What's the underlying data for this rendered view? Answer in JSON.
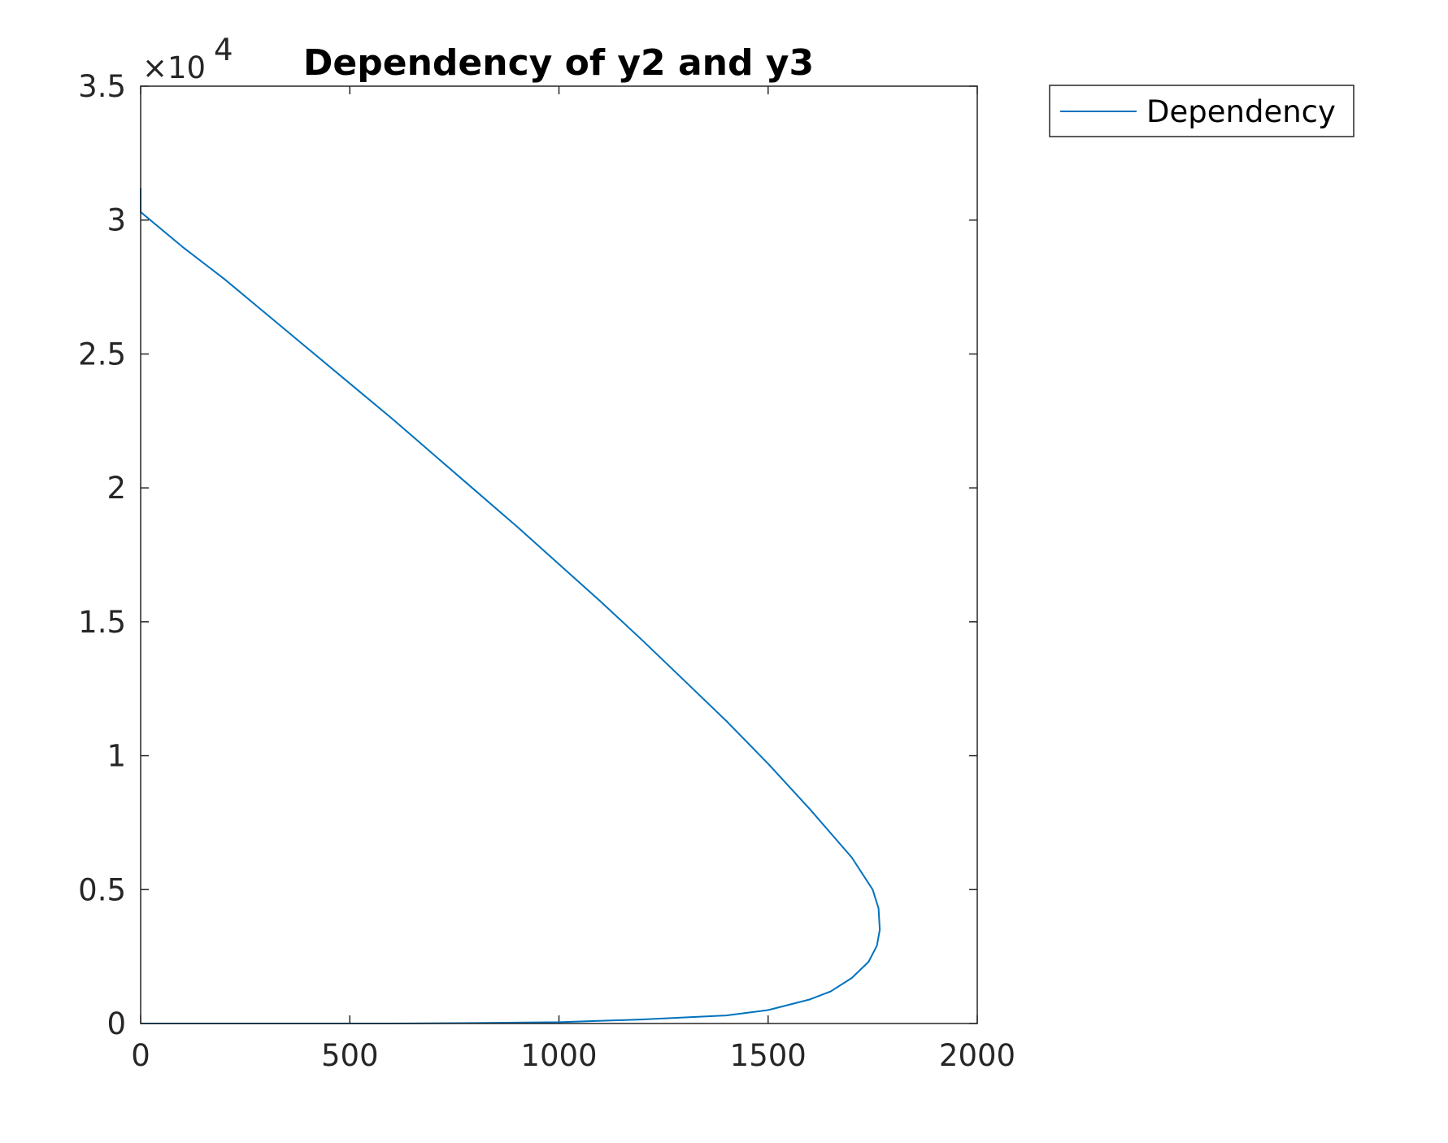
{
  "chart_data": {
    "type": "line",
    "title": "Dependency of y2 and y3",
    "xlabel": "",
    "ylabel": "",
    "xlim": [
      0,
      2000
    ],
    "ylim": [
      0,
      35000
    ],
    "x_ticks": [
      "0",
      "500",
      "1000",
      "1500",
      "2000"
    ],
    "y_ticks": [
      "0",
      "0.5",
      "1",
      "1.5",
      "2",
      "2.5",
      "3",
      "3.5"
    ],
    "y_multiplier": {
      "base": "×10",
      "exponent": "4"
    },
    "grid": false,
    "legend_position": "outside-top-right",
    "colors": {
      "series": "#0072bd",
      "axes": "#262626"
    },
    "series": [
      {
        "name": "Dependency",
        "x": [
          0,
          300,
          600,
          800,
          1000,
          1200,
          1400,
          1500,
          1600,
          1650,
          1700,
          1740,
          1760,
          1767,
          1764,
          1750,
          1700,
          1650,
          1600,
          1500,
          1400,
          1300,
          1200,
          1100,
          1000,
          900,
          800,
          700,
          600,
          500,
          400,
          300,
          200,
          100,
          0,
          0
        ],
        "y": [
          0,
          0,
          0,
          20,
          50,
          150,
          300,
          500,
          900,
          1200,
          1700,
          2300,
          2900,
          3500,
          4300,
          5000,
          6200,
          7100,
          8000,
          9700,
          11300,
          12800,
          14300,
          15750,
          17150,
          18550,
          19900,
          21250,
          22600,
          23900,
          25200,
          26500,
          27800,
          29000,
          30300,
          31200
        ]
      }
    ]
  }
}
